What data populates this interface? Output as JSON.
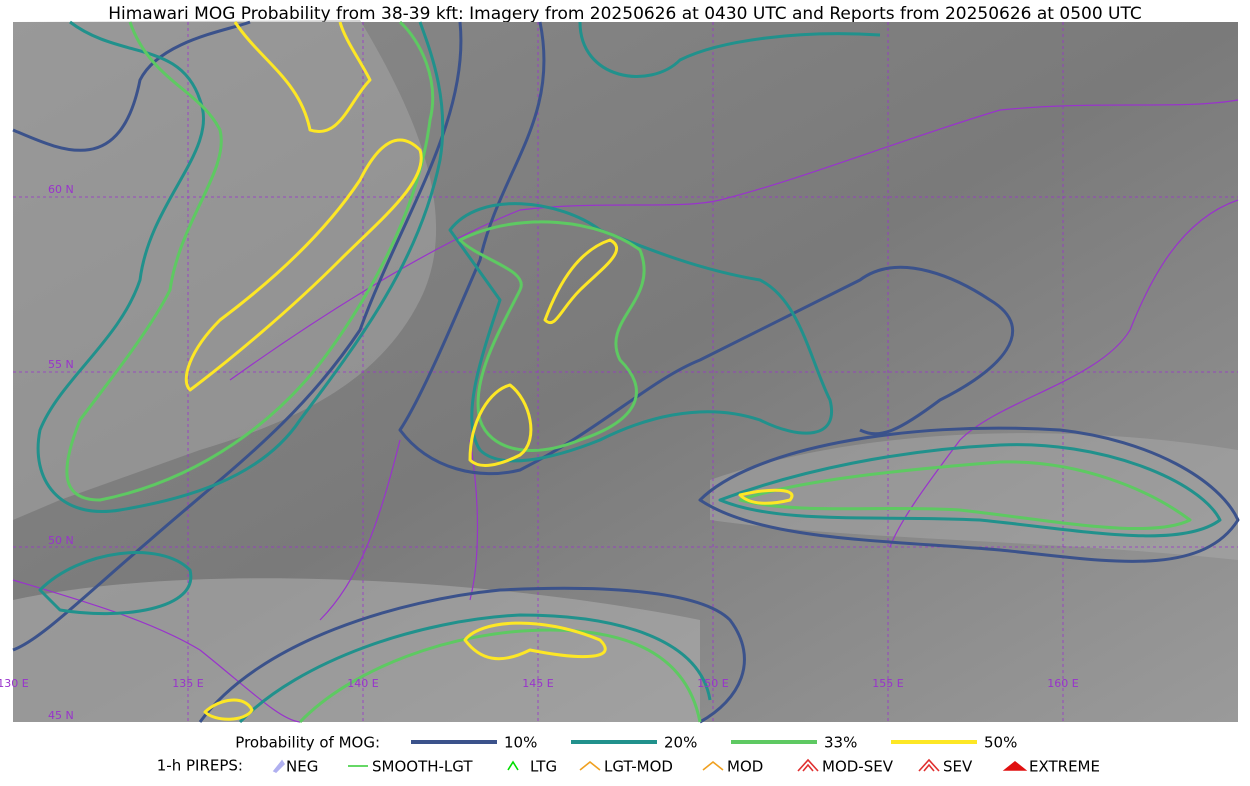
{
  "title": "Himawari MOG Probability from 38-39 kft: Imagery from 20250626 at 0430 UTC and Reports from 20250626 at 0500 UTC",
  "map": {
    "lat_labels": [
      "60 N",
      "55 N",
      "50 N",
      "45 N"
    ],
    "lon_labels": [
      "130 E",
      "135 E",
      "140 E",
      "145 E",
      "150 E",
      "155 E",
      "160 E"
    ]
  },
  "legend": {
    "probability_label": "Probability of MOG:",
    "probability_items": [
      {
        "name": "10%",
        "color": "#3b528b"
      },
      {
        "name": "20%",
        "color": "#21918c"
      },
      {
        "name": "33%",
        "color": "#5ec962"
      },
      {
        "name": "50%",
        "color": "#fde725"
      }
    ],
    "pireps_label": "1-h PIREPS:",
    "pireps_items": [
      {
        "name": "NEG",
        "color": "#b0b0f0"
      },
      {
        "name": "SMOOTH-LGT",
        "color": "#33cc33"
      },
      {
        "name": "LTG",
        "color": "#00dd00"
      },
      {
        "name": "LGT-MOD",
        "color": "#f0a020"
      },
      {
        "name": "MOD",
        "color": "#f0a020"
      },
      {
        "name": "MOD-SEV",
        "color": "#e03030"
      },
      {
        "name": "SEV",
        "color": "#e03030"
      },
      {
        "name": "EXTREME",
        "color": "#e01010"
      }
    ]
  }
}
